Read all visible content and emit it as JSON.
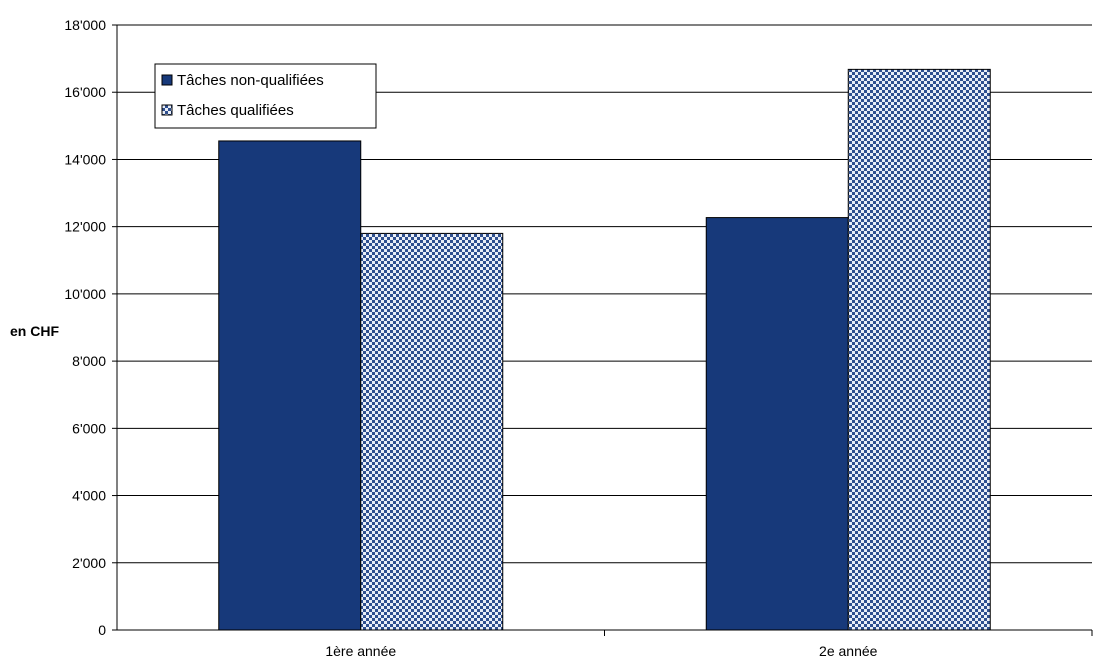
{
  "chart_data": {
    "type": "bar",
    "title": "",
    "xlabel": "",
    "ylabel": "en CHF",
    "ylim": [
      0,
      18000
    ],
    "yticks": [
      0,
      2000,
      4000,
      6000,
      8000,
      10000,
      12000,
      14000,
      16000,
      18000
    ],
    "ytick_labels": [
      "0",
      "2'000",
      "4'000",
      "6'000",
      "8'000",
      "10'000",
      "12'000",
      "14'000",
      "16'000",
      "18'000"
    ],
    "categories": [
      "1ère année",
      "2e année"
    ],
    "series": [
      {
        "name": "Tâches non-qualifiées",
        "values": [
          14550,
          12270
        ],
        "color": "#17397a",
        "fill": "solid"
      },
      {
        "name": "Tâches qualifiées",
        "values": [
          11800,
          16680
        ],
        "color": "#9db4d8",
        "fill": "checkered-pattern"
      }
    ],
    "grid": "horizontal",
    "legend_position": "top-left"
  }
}
